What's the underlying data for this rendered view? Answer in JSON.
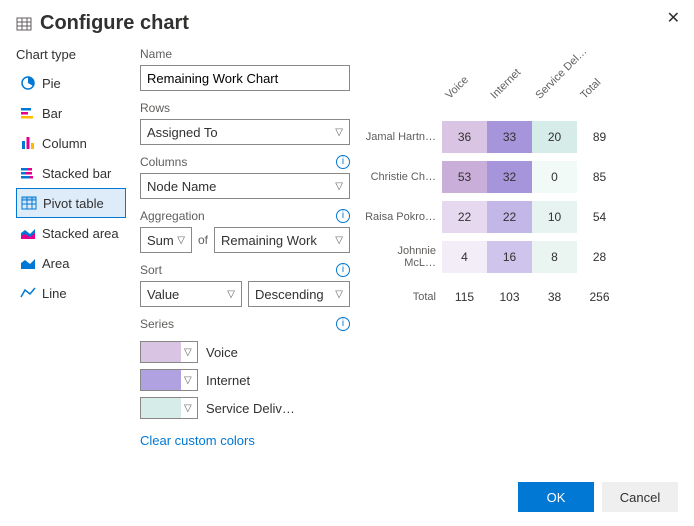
{
  "dialog": {
    "title": "Configure chart",
    "close_label": "✕",
    "ok_label": "OK",
    "cancel_label": "Cancel"
  },
  "chart_type": {
    "label": "Chart type",
    "items": [
      {
        "id": "pie",
        "label": "Pie",
        "selected": false
      },
      {
        "id": "bar",
        "label": "Bar",
        "selected": false
      },
      {
        "id": "column",
        "label": "Column",
        "selected": false
      },
      {
        "id": "stackedbar",
        "label": "Stacked bar",
        "selected": false
      },
      {
        "id": "pivot",
        "label": "Pivot table",
        "selected": true
      },
      {
        "id": "stackedarea",
        "label": "Stacked area",
        "selected": false
      },
      {
        "id": "area",
        "label": "Area",
        "selected": false
      },
      {
        "id": "line",
        "label": "Line",
        "selected": false
      }
    ]
  },
  "form": {
    "name_label": "Name",
    "name_value": "Remaining Work Chart",
    "rows_label": "Rows",
    "rows_value": "Assigned To",
    "columns_label": "Columns",
    "columns_value": "Node Name",
    "aggregation_label": "Aggregation",
    "agg_fn": "Sum",
    "agg_of": "of",
    "agg_field": "Remaining Work",
    "sort_label": "Sort",
    "sort_by": "Value",
    "sort_dir": "Descending",
    "series_label": "Series",
    "series": [
      {
        "color": "#d9c4e4",
        "label": "Voice"
      },
      {
        "color": "#b0a1e0",
        "label": "Internet"
      },
      {
        "color": "#d6ece8",
        "label": "Service Deliv…"
      }
    ],
    "clear_link": "Clear custom colors"
  },
  "pivot": {
    "col_headers": [
      "Voice",
      "Internet",
      "Service Del…",
      "Total"
    ],
    "rows": [
      {
        "label": "Jamal Hartn…",
        "cells": [
          {
            "v": 36,
            "bg": "#d9c4e4"
          },
          {
            "v": 33,
            "bg": "#a795db"
          },
          {
            "v": 20,
            "bg": "#d6ece8"
          },
          {
            "v": 89,
            "bg": "#ffffff"
          }
        ]
      },
      {
        "label": "Christie Ch…",
        "cells": [
          {
            "v": 53,
            "bg": "#c8aed8"
          },
          {
            "v": 32,
            "bg": "#a795db"
          },
          {
            "v": 0,
            "bg": "#f2faf8"
          },
          {
            "v": 85,
            "bg": "#ffffff"
          }
        ]
      },
      {
        "label": "Raisa Pokro…",
        "cells": [
          {
            "v": 22,
            "bg": "#e6d8ef"
          },
          {
            "v": 22,
            "bg": "#c3b7e8"
          },
          {
            "v": 10,
            "bg": "#e6f3f0"
          },
          {
            "v": 54,
            "bg": "#ffffff"
          }
        ]
      },
      {
        "label": "Johnnie McL…",
        "cells": [
          {
            "v": 4,
            "bg": "#f3edf7"
          },
          {
            "v": 16,
            "bg": "#cfc5ec"
          },
          {
            "v": 8,
            "bg": "#eaf5f2"
          },
          {
            "v": 28,
            "bg": "#ffffff"
          }
        ]
      }
    ],
    "total_label": "Total",
    "totals": [
      115,
      103,
      38,
      256
    ]
  },
  "colors": {
    "primary": "#0078d4",
    "selected_bg": "#deecf9"
  }
}
